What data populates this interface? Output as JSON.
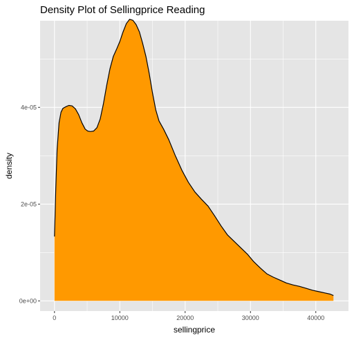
{
  "chart_data": {
    "type": "area",
    "title": "Density Plot of Sellingprice Reading",
    "xlabel": "sellingprice",
    "ylabel": "density",
    "xlim": [
      -2200,
      45000
    ],
    "ylim": [
      -2.1e-06,
      5.79e-05
    ],
    "x_ticks": [
      0,
      10000,
      20000,
      30000,
      40000
    ],
    "x_tick_labels": [
      "0",
      "10000",
      "20000",
      "30000",
      "40000"
    ],
    "y_ticks": [
      0,
      2e-05,
      4e-05
    ],
    "y_tick_labels": [
      "0e+00",
      "2e-05",
      "4e-05"
    ],
    "grid": true,
    "panel_background": "#e5e5e5",
    "grid_color": "#ffffff",
    "fill_color": "#ff9900",
    "line_color": "#000000",
    "series": [
      {
        "x": [
          0,
          200,
          400,
          700,
          1000,
          1300,
          1700,
          2200,
          2700,
          3200,
          3700,
          4200,
          4700,
          5100,
          5500,
          6000,
          6500,
          7000,
          7500,
          8000,
          8500,
          9000,
          9500,
          10000,
          10500,
          11000,
          11500,
          12000,
          12500,
          13000,
          13500,
          14000,
          14500,
          15000,
          15500,
          16000,
          16700,
          17500,
          18500,
          19500,
          20500,
          21500,
          22500,
          23500,
          24500,
          25500,
          26500,
          27500,
          28500,
          29500,
          30500,
          31500,
          32500,
          33500,
          34500,
          35500,
          36500,
          37500,
          38500,
          39500,
          40500,
          41500,
          42200,
          42700
        ],
        "y": [
          1.33e-05,
          2.32e-05,
          3.12e-05,
          3.68e-05,
          3.9e-05,
          3.98e-05,
          4.01e-05,
          4.04e-05,
          4.03e-05,
          3.97e-05,
          3.85e-05,
          3.68e-05,
          3.55e-05,
          3.51e-05,
          3.5e-05,
          3.51e-05,
          3.58e-05,
          3.76e-05,
          4.08e-05,
          4.46e-05,
          4.8e-05,
          5.05e-05,
          5.2e-05,
          5.36e-05,
          5.56e-05,
          5.73e-05,
          5.82e-05,
          5.8e-05,
          5.71e-05,
          5.56e-05,
          5.32e-05,
          5.05e-05,
          4.7e-05,
          4.3e-05,
          3.95e-05,
          3.72e-05,
          3.55e-05,
          3.33e-05,
          3e-05,
          2.7e-05,
          2.45e-05,
          2.25e-05,
          2.1e-05,
          1.96e-05,
          1.76e-05,
          1.55e-05,
          1.36e-05,
          1.23e-05,
          1.1e-05,
          9.7e-06,
          8.1e-06,
          6.8e-06,
          5.6e-06,
          4.9e-06,
          4.3e-06,
          3.7e-06,
          3.3e-06,
          3e-06,
          2.6e-06,
          2.2e-06,
          1.9e-06,
          1.6e-06,
          1.4e-06,
          1.1e-06
        ]
      }
    ]
  }
}
